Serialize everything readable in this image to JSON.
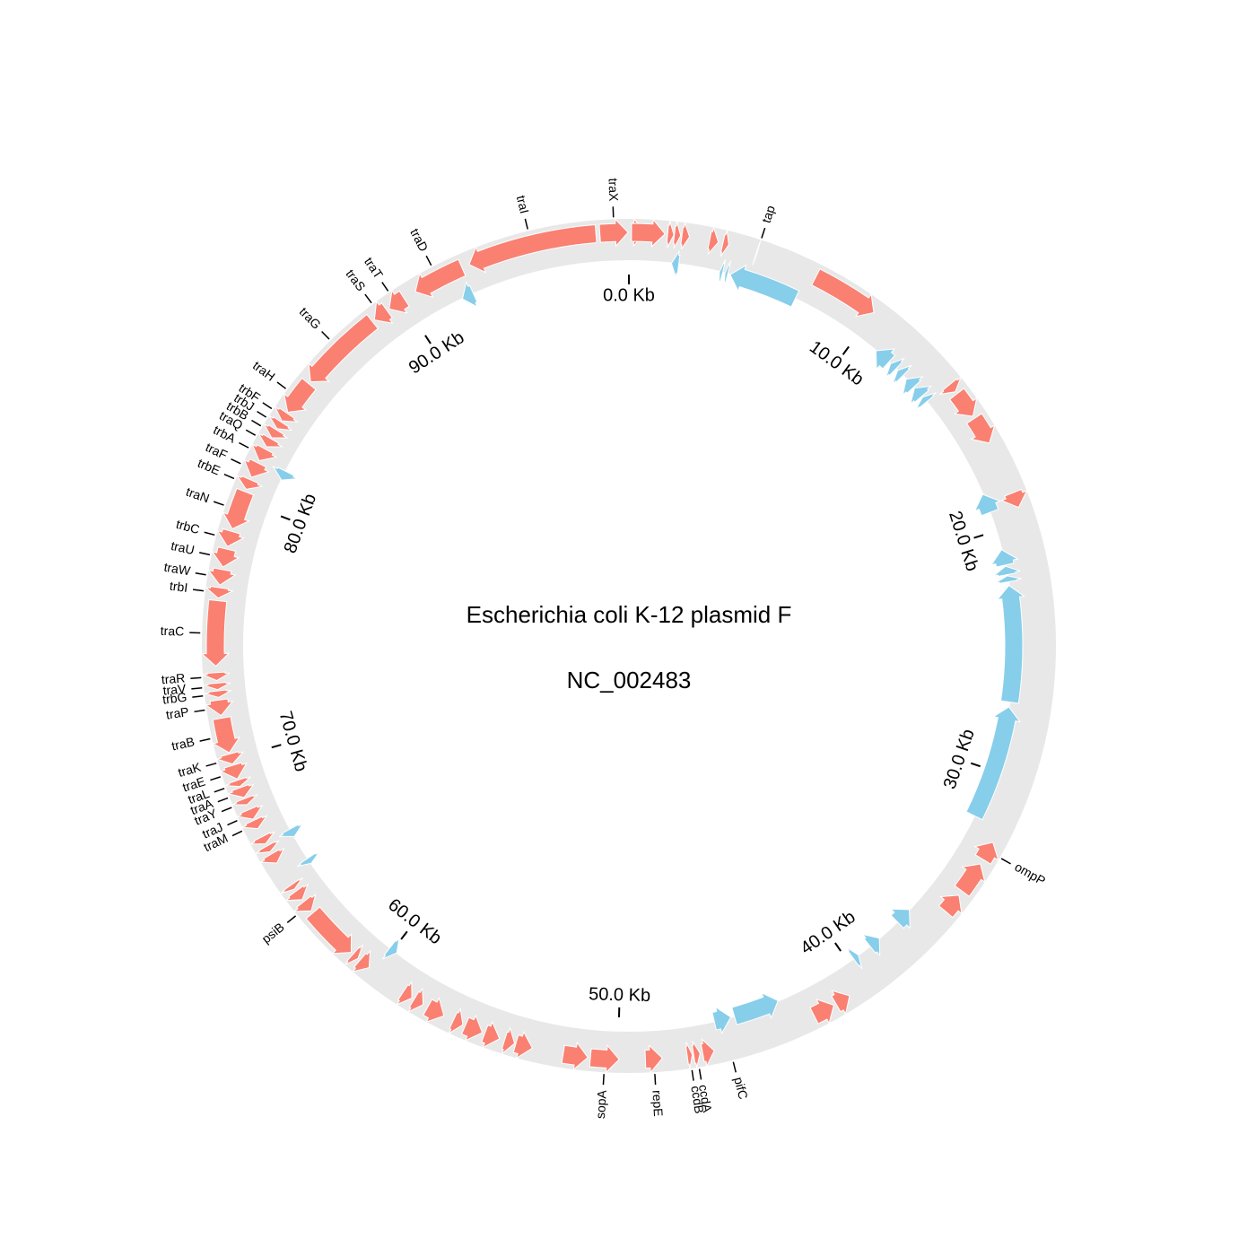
{
  "title": "Escherichia coli K-12 plasmid F",
  "accession": "NC_002483",
  "total_length_kb": 99.16,
  "colors": {
    "forward": "#fa8072",
    "reverse": "#87ceeb",
    "track": "#e8e8e8",
    "text": "#000000"
  },
  "ticks": [
    {
      "kb": 0,
      "label": "0.0 Kb"
    },
    {
      "kb": 10,
      "label": "10.0 Kb"
    },
    {
      "kb": 20,
      "label": "20.0 Kb"
    },
    {
      "kb": 30,
      "label": "30.0 Kb"
    },
    {
      "kb": 40,
      "label": "40.0 Kb"
    },
    {
      "kb": 50,
      "label": "50.0 Kb"
    },
    {
      "kb": 60,
      "label": "60.0 Kb"
    },
    {
      "kb": 70,
      "label": "70.0 Kb"
    },
    {
      "kb": 80,
      "label": "80.0 Kb"
    },
    {
      "kb": 90,
      "label": "90.0 Kb"
    }
  ],
  "forward_genes": [
    {
      "start": 98.05,
      "end": 99.13,
      "name": "traX"
    },
    {
      "start": 99.27,
      "end": 99.78
    },
    {
      "start": 0.1,
      "end": 1.38
    },
    {
      "start": 1.48,
      "end": 1.72
    },
    {
      "start": 1.74,
      "end": 1.98
    },
    {
      "start": 2.03,
      "end": 2.32
    },
    {
      "start": 3.1,
      "end": 3.44
    },
    {
      "start": 3.62,
      "end": 3.85
    },
    {
      "start": 4.95,
      "end": 4.98,
      "name": "tap"
    },
    {
      "start": 7.4,
      "end": 10.0
    },
    {
      "start": 14.0,
      "end": 14.35
    },
    {
      "start": 14.45,
      "end": 15.5
    },
    {
      "start": 15.6,
      "end": 16.7
    },
    {
      "start": 18.8,
      "end": 19.4
    }
  ],
  "forward_genes_rev": [
    {
      "start": 32.6,
      "end": 33.35,
      "name": "ompP"
    },
    {
      "start": 33.55,
      "end": 34.8
    },
    {
      "start": 35.0,
      "end": 35.8
    },
    {
      "start": 40.7,
      "end": 41.3
    },
    {
      "start": 41.4,
      "end": 42.25
    },
    {
      "start": 46.3,
      "end": 46.75
    },
    {
      "start": 46.85,
      "end": 47.1,
      "name": "ccdA"
    },
    {
      "start": 47.15,
      "end": 47.35,
      "name": "ccdB"
    },
    {
      "start": 48.3,
      "end": 48.95,
      "name": "repE"
    },
    {
      "start": 49.95,
      "end": 51.05,
      "name": "sopA"
    },
    {
      "start": 51.15,
      "end": 52.1
    },
    {
      "start": 53.3,
      "end": 53.95
    },
    {
      "start": 54.0,
      "end": 54.4
    },
    {
      "start": 54.6,
      "end": 55.2
    },
    {
      "start": 55.3,
      "end": 56.0
    },
    {
      "start": 56.1,
      "end": 56.5
    },
    {
      "start": 56.9,
      "end": 57.6
    },
    {
      "start": 57.8,
      "end": 58.2
    },
    {
      "start": 58.3,
      "end": 58.7
    },
    {
      "start": 60.3,
      "end": 60.75
    },
    {
      "start": 60.85,
      "end": 61.1
    },
    {
      "start": 61.2,
      "end": 63.3
    },
    {
      "start": 63.4,
      "end": 63.85,
      "name": "psiB"
    },
    {
      "start": 63.95,
      "end": 64.35
    },
    {
      "start": 64.45,
      "end": 64.65
    },
    {
      "start": 65.65,
      "end": 66.05
    },
    {
      "start": 66.15,
      "end": 66.4
    },
    {
      "start": 66.5,
      "end": 66.8
    }
  ],
  "tra_genes": [
    {
      "start": 67.15,
      "end": 67.5,
      "name": "traM"
    },
    {
      "start": 67.55,
      "end": 67.95,
      "name": "traJ"
    },
    {
      "start": 68.15,
      "end": 68.4,
      "name": "traY"
    },
    {
      "start": 68.45,
      "end": 68.85,
      "name": "traA"
    },
    {
      "start": 68.9,
      "end": 69.15,
      "name": "traL"
    },
    {
      "start": 69.2,
      "end": 69.75,
      "name": "traE"
    },
    {
      "start": 69.8,
      "end": 70.2,
      "name": "traK"
    },
    {
      "start": 70.25,
      "end": 71.6,
      "name": "traB"
    },
    {
      "start": 71.7,
      "end": 72.3,
      "name": "traP"
    },
    {
      "start": 72.4,
      "end": 72.65,
      "name": "trbG"
    },
    {
      "start": 72.7,
      "end": 72.95,
      "name": "traV"
    },
    {
      "start": 73.05,
      "end": 73.35,
      "name": "traR"
    },
    {
      "start": 73.6,
      "end": 76.1,
      "name": "traC"
    },
    {
      "start": 76.2,
      "end": 76.6,
      "name": "trbI"
    },
    {
      "start": 76.7,
      "end": 77.3,
      "name": "traW"
    },
    {
      "start": 77.4,
      "end": 78.1,
      "name": "traU"
    },
    {
      "start": 78.2,
      "end": 78.8,
      "name": "trbC"
    },
    {
      "start": 78.9,
      "end": 80.4,
      "name": "traN"
    },
    {
      "start": 80.5,
      "end": 80.9,
      "name": "trbE"
    },
    {
      "start": 81.0,
      "end": 81.6,
      "name": "traF"
    },
    {
      "start": 81.7,
      "end": 82.2,
      "name": "trbA"
    },
    {
      "start": 82.3,
      "end": 82.65,
      "name": "traQ"
    },
    {
      "start": 82.7,
      "end": 83.05,
      "name": "trbB"
    },
    {
      "start": 83.1,
      "end": 83.4,
      "name": "trbJ"
    },
    {
      "start": 83.45,
      "end": 83.8,
      "name": "trbF"
    },
    {
      "start": 83.85,
      "end": 85.2,
      "name": "traH"
    },
    {
      "start": 85.3,
      "end": 88.6,
      "name": "traG"
    },
    {
      "start": 88.7,
      "end": 89.3,
      "name": "traS"
    },
    {
      "start": 89.4,
      "end": 90.1,
      "name": "traT"
    },
    {
      "start": 90.6,
      "end": 92.6,
      "name": "traD"
    },
    {
      "start": 92.9,
      "end": 97.9,
      "name": "traI"
    }
  ],
  "reverse_genes": [
    {
      "start": 1.75,
      "end": 2.05
    },
    {
      "start": 3.75,
      "end": 3.88
    },
    {
      "start": 3.98,
      "end": 4.1
    },
    {
      "start": 4.2,
      "end": 7.05
    },
    {
      "start": 11.0,
      "end": 11.7
    },
    {
      "start": 11.8,
      "end": 12.1
    },
    {
      "start": 12.2,
      "end": 12.5
    },
    {
      "start": 12.7,
      "end": 13.15
    },
    {
      "start": 13.2,
      "end": 13.65
    },
    {
      "start": 13.7,
      "end": 13.95
    },
    {
      "start": 18.4,
      "end": 19.2
    },
    {
      "start": 20.8,
      "end": 21.45
    },
    {
      "start": 21.5,
      "end": 21.85
    },
    {
      "start": 21.9,
      "end": 22.15
    },
    {
      "start": 22.3,
      "end": 27.1
    },
    {
      "start": 27.3,
      "end": 32.0
    },
    {
      "start": 36.7,
      "end": 37.4
    },
    {
      "start": 38.4,
      "end": 38.9
    },
    {
      "start": 39.5,
      "end": 39.75
    },
    {
      "start": 43.3,
      "end": 45.2
    },
    {
      "start": 45.35,
      "end": 46.05,
      "name": "pifC"
    },
    {
      "start": 59.8,
      "end": 60.15
    },
    {
      "start": 64.9,
      "end": 65.15
    },
    {
      "start": 66.2,
      "end": 66.55
    },
    {
      "start": 81.4,
      "end": 81.8
    },
    {
      "start": 92.1,
      "end": 92.6
    }
  ]
}
